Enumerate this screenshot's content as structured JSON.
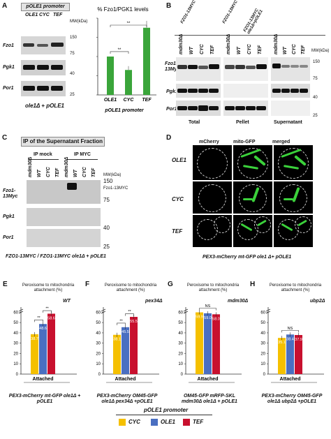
{
  "panel_A": {
    "letter": "A",
    "promoter_header": "pOLE1 promoter",
    "lanes": [
      "OLE1",
      "CYC",
      "TEF"
    ],
    "mw_label": "MW(kDa)",
    "mw_marks": [
      "150",
      "75",
      "40",
      "25"
    ],
    "rows": [
      "Fzo1",
      "Pgk1",
      "Por1"
    ],
    "strain_label": "ole1Δ + pOLE1",
    "chart_title": "% Fzo1/PGK1 levels",
    "chart_xlabel": "pOLE1 promoter",
    "sig1": "**",
    "sig2": "**"
  },
  "panel_B": {
    "letter": "B",
    "strain_headers": [
      "FZO1-13MYC",
      "FZO1-13MYC",
      "FZO1-13MYC ole1Δ+pOLE1"
    ],
    "lanes": [
      "mdm30Δ",
      "WT",
      "CYC",
      "TEF"
    ],
    "mw_label": "MW(kDa)",
    "mw_marks": [
      "150",
      "75",
      "40",
      "25"
    ],
    "rows": [
      "Fzo1-13Myc",
      "Pgk1",
      "Por1"
    ],
    "fractions": [
      "Total",
      "Pellet",
      "Supernatant"
    ]
  },
  "panel_C": {
    "letter": "C",
    "title": "IP of the Supernatant Fraction",
    "groups": [
      "IP mock",
      "IP MYC"
    ],
    "lanes": [
      "mdm30Δ",
      "WT",
      "CYC",
      "TEF",
      "mdm30Δ",
      "WT",
      "CYC",
      "TEF"
    ],
    "mw_label": "MW(kDa)",
    "mw_marks": [
      "150",
      "75",
      "40",
      "25"
    ],
    "band_label": "Fzo1-13MYC",
    "rows": [
      "Fzo1-13Myc",
      "Pgk1",
      "Por1"
    ],
    "strain_label": "FZO1-13MYC / FZO1-13MYC ole1Δ + pOLE1"
  },
  "panel_D": {
    "letter": "D",
    "cols": [
      "mCherry",
      "mito-GFP",
      "merged"
    ],
    "rows": [
      "OLE1",
      "CYC",
      "TEF"
    ],
    "strain_label": "PEX3-mCherry mt-GFP ole1 Δ+ pOLE1"
  },
  "bottom_panels": [
    {
      "letter": "E",
      "title": "Peroxisome to mitochondria attachment (%)",
      "tag": "WT",
      "strain": "PEX3-mCherry mt-GFP ole1Δ + pOLE1",
      "sig": [
        "**",
        "**"
      ],
      "ns": ""
    },
    {
      "letter": "F",
      "title": "Peroxisome to mitochondria attachment (%)",
      "tag": "pex34Δ",
      "strain": "PEX3-mCherry OM45-GFP ole1Δ pex34Δ +pOLE1",
      "sig": [
        "**",
        "**"
      ],
      "ns": ""
    },
    {
      "letter": "G",
      "title": "Peroxisome to mitochondria attachment (%)",
      "tag": "mdm30Δ",
      "strain": "OM45-GFP mRFP-SKL mdm30Δ ole1Δ + pOLE1",
      "sig": [],
      "ns": "NS"
    },
    {
      "letter": "H",
      "title": "Peroxisome to mitochondria attachment (%)",
      "tag": "ubp2Δ",
      "strain": "PEX3-mCherry OM45-GFP ole1Δ ubp2Δ +pOLE1",
      "sig": [],
      "ns": "NS"
    }
  ],
  "bottom_common": {
    "y_ticks": [
      "0",
      "10",
      "20",
      "30",
      "40",
      "50",
      "60"
    ],
    "x_label": "Attached"
  },
  "legend": {
    "title": "pOLE1 promoter",
    "items": [
      {
        "label": "CYC",
        "color": "#f5c000"
      },
      {
        "label": "OLE1",
        "color": "#4a6fc1"
      },
      {
        "label": "TEF",
        "color": "#c8102e"
      }
    ]
  },
  "chart_data": [
    {
      "type": "bar",
      "panel": "A",
      "title": "% Fzo1/PGK1 levels",
      "xlabel": "pOLE1 promoter",
      "ylabel": "",
      "categories": [
        "OLE1",
        "CYC",
        "TEF"
      ],
      "values": [
        100,
        65,
        175
      ],
      "errors": [
        0,
        10,
        18
      ],
      "ylim": [
        0,
        200
      ],
      "color": "#3aa53a"
    },
    {
      "type": "bar",
      "panel": "E",
      "title": "Peroxisome to mitochondria attachment (%)",
      "categories": [
        "Attached"
      ],
      "series": [
        {
          "name": "CYC",
          "values": [
            38.7
          ]
        },
        {
          "name": "OLE1",
          "values": [
            48.6
          ]
        },
        {
          "name": "TEF",
          "values": [
            58.6
          ]
        }
      ],
      "ylim": [
        0,
        65
      ],
      "y_ticks": [
        0,
        10,
        20,
        30,
        40,
        50,
        60
      ]
    },
    {
      "type": "bar",
      "panel": "F",
      "title": "Peroxisome to mitochondria attachment (%)",
      "categories": [
        "Attached"
      ],
      "series": [
        {
          "name": "CYC",
          "values": [
            38.1
          ]
        },
        {
          "name": "OLE1",
          "values": [
            45.5
          ]
        },
        {
          "name": "TEF",
          "values": [
            55.5
          ]
        }
      ],
      "ylim": [
        0,
        65
      ],
      "y_ticks": [
        0,
        10,
        20,
        30,
        40,
        50,
        60
      ]
    },
    {
      "type": "bar",
      "panel": "G",
      "title": "Peroxisome to mitochondria attachment (%)",
      "categories": [
        "Attached"
      ],
      "series": [
        {
          "name": "CYC",
          "values": [
            59.9
          ]
        },
        {
          "name": "OLE1",
          "values": [
            59.0
          ]
        },
        {
          "name": "TEF",
          "values": [
            58.0
          ]
        }
      ],
      "ylim": [
        0,
        65
      ],
      "y_ticks": [
        0,
        10,
        20,
        30,
        40,
        50,
        60
      ]
    },
    {
      "type": "bar",
      "panel": "H",
      "title": "Peroxisome to mitochondria attachment (%)",
      "categories": [
        "Attached"
      ],
      "series": [
        {
          "name": "CYC",
          "values": [
            35.1
          ]
        },
        {
          "name": "OLE1",
          "values": [
            38.4
          ]
        },
        {
          "name": "TEF",
          "values": [
            37.9
          ]
        }
      ],
      "ylim": [
        0,
        65
      ],
      "y_ticks": [
        0,
        10,
        20,
        30,
        40,
        50,
        60
      ]
    }
  ]
}
